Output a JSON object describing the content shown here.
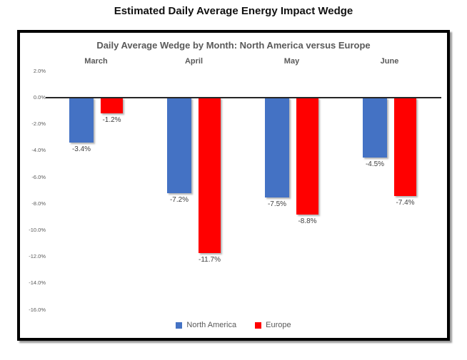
{
  "page_title": "Estimated Daily Average Energy Impact Wedge",
  "chart_data": {
    "type": "bar",
    "title": "Daily Average Wedge by Month: North America versus Europe",
    "categories": [
      "March",
      "April",
      "May",
      "June"
    ],
    "series": [
      {
        "name": "North America",
        "color": "#4472C4",
        "values": [
          -3.4,
          -7.2,
          -7.5,
          -4.5
        ],
        "labels": [
          "-3.4%",
          "-7.2%",
          "-7.5%",
          "-4.5%"
        ]
      },
      {
        "name": "Europe",
        "color": "#FF0000",
        "values": [
          -1.2,
          -11.7,
          -8.8,
          -7.4
        ],
        "labels": [
          "-1.2%",
          "-11.7%",
          "-8.8%",
          "-7.4%"
        ]
      }
    ],
    "xlabel": "",
    "ylabel": "",
    "ylim": [
      -16,
      2
    ],
    "y_ticks": [
      {
        "value": 2,
        "label": "2.0%"
      },
      {
        "value": 0,
        "label": "0.0%"
      },
      {
        "value": -2,
        "label": "-2.0%"
      },
      {
        "value": -4,
        "label": "-4.0%"
      },
      {
        "value": -6,
        "label": "-6.0%"
      },
      {
        "value": -8,
        "label": "-8.0%"
      },
      {
        "value": -10,
        "label": "-10.0%"
      },
      {
        "value": -12,
        "label": "-12.0%"
      },
      {
        "value": -14,
        "label": "-14.0%"
      },
      {
        "value": -16,
        "label": "-16.0%"
      }
    ],
    "legend": {
      "position": "bottom",
      "entries": [
        "North America",
        "Europe"
      ]
    },
    "grid": false,
    "axis_line_color": "#262626"
  }
}
